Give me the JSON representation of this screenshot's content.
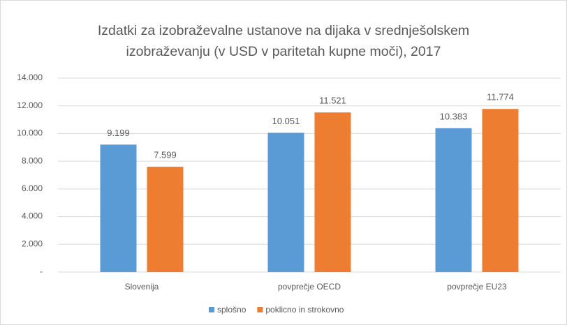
{
  "chart_data": {
    "type": "bar",
    "title": "Izdatki za izobraževalne ustanove na dijaka v srednješolskem izobraževanju (v USD v paritetah kupne moči), 2017",
    "categories": [
      "Slovenija",
      "povprečje OECD",
      "povprečje EU23"
    ],
    "series": [
      {
        "name": "splošno",
        "color": "#5b9bd5",
        "values": [
          9199,
          10051,
          10383
        ],
        "value_labels": [
          "9.199",
          "10.051",
          "10.383"
        ]
      },
      {
        "name": "poklicno in strokovno",
        "color": "#ed7d31",
        "values": [
          7599,
          11521,
          11774
        ],
        "value_labels": [
          "7.599",
          "11.521",
          "11.774"
        ]
      }
    ],
    "ylim": [
      0,
      14000
    ],
    "yticks": [
      {
        "value": 0,
        "label": "-"
      },
      {
        "value": 2000,
        "label": "2.000"
      },
      {
        "value": 4000,
        "label": "4.000"
      },
      {
        "value": 6000,
        "label": "6.000"
      },
      {
        "value": 8000,
        "label": "8.000"
      },
      {
        "value": 10000,
        "label": "10.000"
      },
      {
        "value": 12000,
        "label": "12.000"
      },
      {
        "value": 14000,
        "label": "14.000"
      }
    ],
    "grid": true,
    "legend": "bottom"
  }
}
